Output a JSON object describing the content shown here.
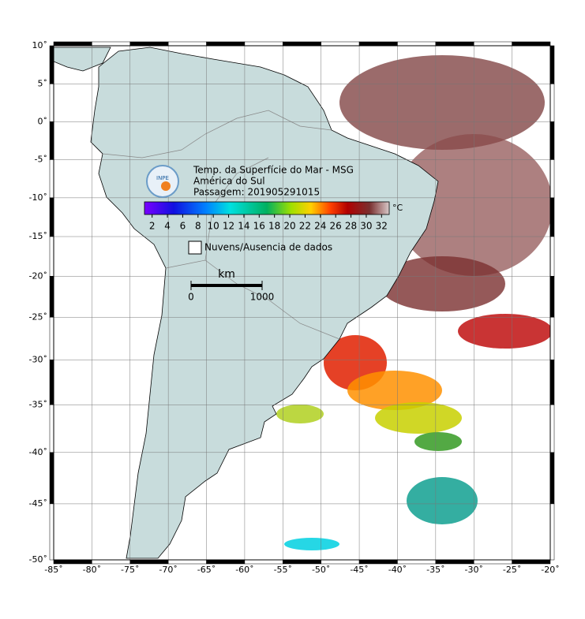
{
  "map": {
    "xlim": [
      -85,
      -20
    ],
    "ylim": [
      -50,
      10
    ],
    "xticks": [
      {
        "value": -85,
        "label": "-85˚"
      },
      {
        "value": -80,
        "label": "-80˚"
      },
      {
        "value": -75,
        "label": "-75˚"
      },
      {
        "value": -70,
        "label": "-70˚"
      },
      {
        "value": -65,
        "label": "-65˚"
      },
      {
        "value": -60,
        "label": "-60˚"
      },
      {
        "value": -55,
        "label": "-55˚"
      },
      {
        "value": -50,
        "label": "-50˚"
      },
      {
        "value": -45,
        "label": "-45˚"
      },
      {
        "value": -40,
        "label": "-40˚"
      },
      {
        "value": -35,
        "label": "-35˚"
      },
      {
        "value": -30,
        "label": "-30˚"
      },
      {
        "value": -25,
        "label": "-25˚"
      },
      {
        "value": -20,
        "label": "-20˚"
      }
    ],
    "yticks": [
      {
        "value": 10,
        "label": "10˚"
      },
      {
        "value": 5,
        "label": "5˚"
      },
      {
        "value": 0,
        "label": "0˚"
      },
      {
        "value": -5,
        "label": "-5˚"
      },
      {
        "value": -10,
        "label": "-10˚"
      },
      {
        "value": -15,
        "label": "-15˚"
      },
      {
        "value": -20,
        "label": "-20˚"
      },
      {
        "value": -25,
        "label": "-25˚"
      },
      {
        "value": -30,
        "label": "-30˚"
      },
      {
        "value": -35,
        "label": "-35˚"
      },
      {
        "value": -40,
        "label": "-40˚"
      },
      {
        "value": -45,
        "label": "-45˚"
      },
      {
        "value": -50,
        "label": "-50˚"
      }
    ],
    "grid": true
  },
  "info": {
    "logo": "INPE",
    "title": "Temp. da Superfície do Mar - MSG",
    "region": "América do Sul",
    "pass": "Passagem: 201905291015"
  },
  "colorbar": {
    "unit": "°C",
    "lim": [
      1,
      33
    ],
    "ticks": [
      2,
      4,
      6,
      8,
      10,
      12,
      14,
      16,
      18,
      20,
      22,
      24,
      26,
      28,
      30,
      32
    ]
  },
  "legend": {
    "no_data": "Nuvens/Ausencia de dados"
  },
  "scale_bar": {
    "unit": "km",
    "ticks": [
      0,
      1000
    ]
  }
}
